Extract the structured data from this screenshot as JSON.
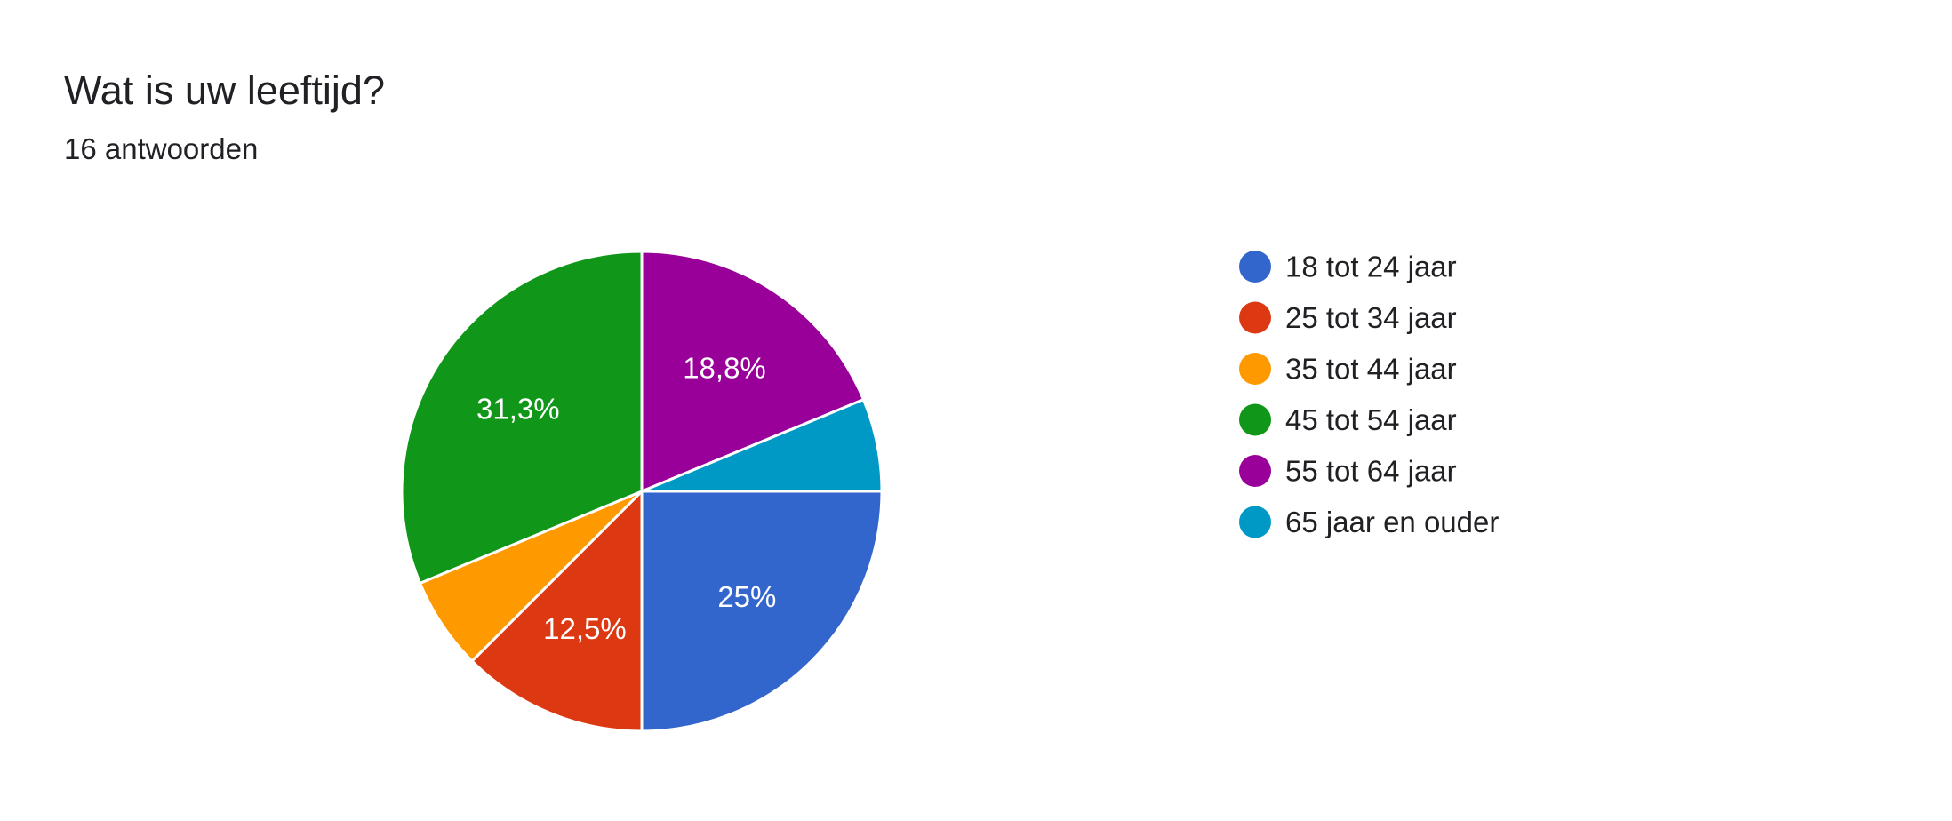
{
  "header": {
    "title": "Wat is uw leeftijd?",
    "response_count": "16 antwoorden"
  },
  "chart_data": {
    "type": "pie",
    "title": "Wat is uw leeftijd?",
    "subtitle": "16 antwoorden",
    "legend_position": "right",
    "slices": [
      {
        "label": "18 tot 24 jaar",
        "value": 4,
        "percent_label": "25%",
        "color": "#3366cc"
      },
      {
        "label": "25 tot 34 jaar",
        "value": 2,
        "percent_label": "12,5%",
        "color": "#dc3912"
      },
      {
        "label": "35 tot 44 jaar",
        "value": 1,
        "percent_label": "",
        "color": "#ff9900"
      },
      {
        "label": "45 tot 54 jaar",
        "value": 5,
        "percent_label": "31,3%",
        "color": "#109618"
      },
      {
        "label": "55 tot 64 jaar",
        "value": 3,
        "percent_label": "18,8%",
        "color": "#990099"
      },
      {
        "label": "65 jaar en ouder",
        "value": 1,
        "percent_label": "",
        "color": "#0099c6"
      }
    ]
  }
}
